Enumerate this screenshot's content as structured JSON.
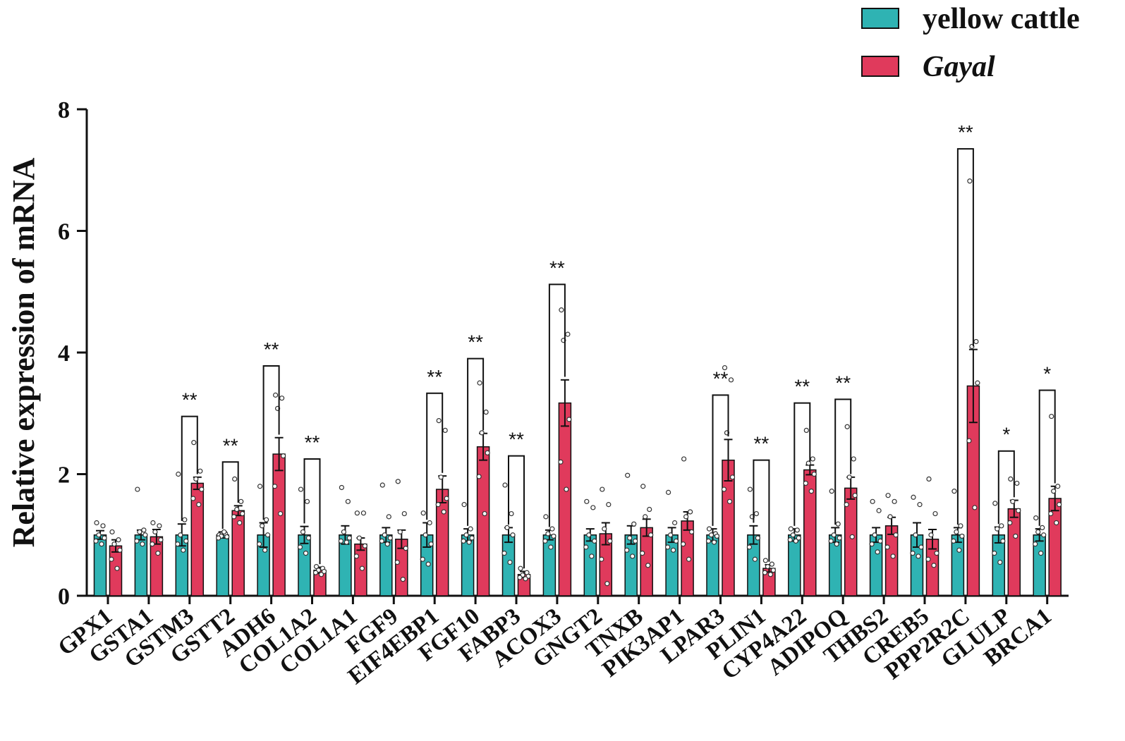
{
  "chart_data": {
    "type": "bar",
    "title": "",
    "xlabel": "",
    "ylabel": "Relative expression of mRNA",
    "ylim": [
      0,
      8
    ],
    "yticks": [
      0,
      2,
      4,
      6,
      8
    ],
    "ytick_labels": [
      "0",
      "2",
      "4",
      "6",
      "8"
    ],
    "categories": [
      "GPX1",
      "GSTA1",
      "GSTM3",
      "GSTT2",
      "ADH6",
      "COL1A2",
      "COL1A1",
      "FGF9",
      "EIF4EBP1",
      "FGF10",
      "FABP3",
      "ACOX3",
      "GNGT2",
      "TNXB",
      "PIK3AP1",
      "LPAR3",
      "PLIN1",
      "CYP4A22",
      "ADIPOQ",
      "THBS2",
      "CREB5",
      "PPP2R2C",
      "GLULP",
      "BRCA1"
    ],
    "legend_position": "top-right",
    "series": [
      {
        "name": "yellow cattle",
        "italic": false,
        "color": "#2FB3B3",
        "values": [
          1.0,
          1.0,
          1.0,
          1.0,
          1.0,
          1.0,
          1.0,
          1.0,
          1.0,
          1.0,
          1.0,
          1.0,
          1.0,
          1.0,
          1.0,
          1.0,
          1.0,
          1.0,
          1.0,
          1.0,
          1.0,
          1.0,
          1.0,
          1.0
        ],
        "errors": [
          0.07,
          0.08,
          0.18,
          0.05,
          0.2,
          0.14,
          0.15,
          0.12,
          0.2,
          0.1,
          0.12,
          0.08,
          0.1,
          0.15,
          0.12,
          0.1,
          0.15,
          0.1,
          0.12,
          0.12,
          0.2,
          0.12,
          0.13,
          0.1
        ],
        "points": [
          [
            1.2,
            1.15,
            1.0,
            0.95,
            0.9,
            0.85
          ],
          [
            1.75,
            1.08,
            1.05,
            1.0,
            0.9,
            0.85
          ],
          [
            2.0,
            1.25,
            1.0,
            0.9,
            0.85,
            0.75
          ],
          [
            1.0,
            1.02,
            0.98,
            0.97,
            0.95,
            1.05
          ],
          [
            1.8,
            1.25,
            1.15,
            1.0,
            0.85,
            0.75
          ],
          [
            1.75,
            1.55,
            1.05,
            0.95,
            0.8,
            0.7
          ],
          [
            1.78,
            1.55,
            1.05,
            0.95,
            0.9,
            0.88
          ],
          [
            1.82,
            1.3,
            1.0,
            0.95,
            0.9,
            0.85
          ],
          [
            1.36,
            1.2,
            1.0,
            0.85,
            0.6,
            0.52
          ],
          [
            1.5,
            1.1,
            1.0,
            0.95,
            0.9,
            0.88
          ],
          [
            1.82,
            1.35,
            1.12,
            1.0,
            0.7,
            0.55
          ],
          [
            1.3,
            1.1,
            1.02,
            0.98,
            0.9,
            0.8
          ],
          [
            1.55,
            1.45,
            1.0,
            0.9,
            0.8,
            0.65
          ],
          [
            1.98,
            1.18,
            0.95,
            0.9,
            0.75,
            0.65
          ],
          [
            1.7,
            1.2,
            1.0,
            0.9,
            0.8,
            0.75
          ],
          [
            1.1,
            1.02,
            1.0,
            0.98,
            0.9,
            0.88
          ],
          [
            1.75,
            1.35,
            1.3,
            0.95,
            0.8,
            0.6
          ],
          [
            1.1,
            1.08,
            1.0,
            0.95,
            0.92,
            0.9
          ],
          [
            1.72,
            1.18,
            1.0,
            0.95,
            0.9,
            0.85
          ],
          [
            1.55,
            1.4,
            1.0,
            0.9,
            0.85,
            0.72
          ],
          [
            1.62,
            1.5,
            1.0,
            0.8,
            0.7,
            0.65
          ],
          [
            1.72,
            1.15,
            1.05,
            0.98,
            0.9,
            0.75
          ],
          [
            1.52,
            1.15,
            1.1,
            0.9,
            0.7,
            0.55
          ],
          [
            1.28,
            1.12,
            1.05,
            1.0,
            0.85,
            0.7
          ]
        ]
      },
      {
        "name": "Gayal",
        "italic": true,
        "color": "#E03A5C",
        "values": [
          0.82,
          0.97,
          1.85,
          1.4,
          2.33,
          0.42,
          0.85,
          0.93,
          1.75,
          2.45,
          0.35,
          3.17,
          1.02,
          1.12,
          1.23,
          2.23,
          0.45,
          2.07,
          1.77,
          1.15,
          0.93,
          3.45,
          1.43,
          1.6
        ],
        "errors": [
          0.1,
          0.12,
          0.1,
          0.08,
          0.27,
          0.05,
          0.1,
          0.15,
          0.22,
          0.22,
          0.05,
          0.38,
          0.18,
          0.14,
          0.15,
          0.34,
          0.06,
          0.08,
          0.18,
          0.14,
          0.16,
          0.6,
          0.14,
          0.2
        ],
        "points": [
          [
            1.05,
            0.92,
            0.85,
            0.75,
            0.6,
            0.45
          ],
          [
            1.2,
            1.15,
            1.05,
            0.92,
            0.85,
            0.7
          ],
          [
            2.52,
            2.05,
            1.92,
            1.75,
            1.6,
            1.5
          ],
          [
            1.92,
            1.55,
            1.42,
            1.35,
            1.3,
            1.2
          ],
          [
            3.3,
            3.25,
            3.08,
            2.3,
            1.8,
            1.35
          ],
          [
            0.48,
            0.45,
            0.42,
            0.4,
            0.38,
            0.35
          ],
          [
            1.36,
            1.36,
            0.95,
            0.82,
            0.65,
            0.45
          ],
          [
            1.88,
            1.35,
            1.05,
            0.78,
            0.55,
            0.27
          ],
          [
            2.88,
            2.72,
            1.95,
            1.6,
            1.5,
            1.38
          ],
          [
            3.5,
            3.02,
            2.68,
            2.35,
            1.96,
            1.35
          ],
          [
            0.45,
            0.38,
            0.34,
            0.32,
            0.3,
            0.28
          ],
          [
            4.7,
            4.3,
            4.2,
            2.9,
            2.2,
            1.75
          ],
          [
            1.75,
            1.5,
            1.1,
            0.9,
            0.6,
            0.2
          ],
          [
            1.8,
            1.42,
            1.3,
            1.0,
            0.7,
            0.5
          ],
          [
            2.25,
            1.38,
            1.3,
            1.05,
            0.85,
            0.6
          ],
          [
            3.75,
            3.55,
            2.68,
            1.95,
            1.75,
            1.55
          ],
          [
            0.58,
            0.52,
            0.48,
            0.42,
            0.38,
            0.35
          ],
          [
            2.72,
            2.25,
            2.18,
            2.0,
            1.85,
            1.72
          ],
          [
            2.78,
            2.25,
            1.95,
            1.65,
            1.5,
            0.97
          ],
          [
            1.65,
            1.55,
            1.3,
            1.0,
            0.8,
            0.65
          ],
          [
            1.92,
            1.35,
            1.0,
            0.7,
            0.6,
            0.5
          ],
          [
            6.82,
            4.18,
            4.1,
            3.5,
            2.55,
            1.45
          ],
          [
            1.92,
            1.85,
            1.55,
            1.4,
            1.2,
            0.98
          ],
          [
            2.95,
            1.8,
            1.72,
            1.5,
            1.35,
            1.2
          ]
        ]
      }
    ],
    "significance": [
      {
        "index": 2,
        "label": "**",
        "bracket_top": 2.95
      },
      {
        "index": 3,
        "label": "**",
        "bracket_top": 2.2
      },
      {
        "index": 4,
        "label": "**",
        "bracket_top": 3.78
      },
      {
        "index": 5,
        "label": "**",
        "bracket_top": 2.25
      },
      {
        "index": 8,
        "label": "**",
        "bracket_top": 3.33
      },
      {
        "index": 9,
        "label": "**",
        "bracket_top": 3.9
      },
      {
        "index": 10,
        "label": "**",
        "bracket_top": 2.3
      },
      {
        "index": 11,
        "label": "**",
        "bracket_top": 5.12
      },
      {
        "index": 15,
        "label": "**",
        "bracket_top": 3.3
      },
      {
        "index": 16,
        "label": "**",
        "bracket_top": 2.23
      },
      {
        "index": 17,
        "label": "**",
        "bracket_top": 3.17
      },
      {
        "index": 18,
        "label": "**",
        "bracket_top": 3.23
      },
      {
        "index": 21,
        "label": "**",
        "bracket_top": 7.35
      },
      {
        "index": 22,
        "label": "*",
        "bracket_top": 2.38
      },
      {
        "index": 23,
        "label": "*",
        "bracket_top": 3.38
      }
    ]
  }
}
